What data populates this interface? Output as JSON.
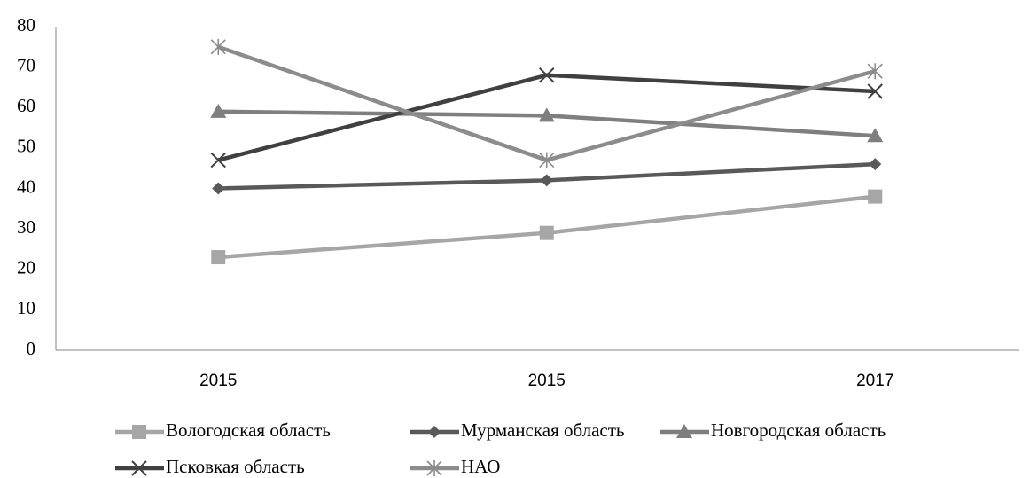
{
  "chart_data": {
    "type": "line",
    "categories": [
      "2015",
      "2015",
      "2017"
    ],
    "series": [
      {
        "name": "Вологодская область",
        "color": "#a6a6a6",
        "marker": "square",
        "values": [
          23,
          29,
          38
        ]
      },
      {
        "name": "Мурманская область",
        "color": "#595959",
        "marker": "diamond",
        "values": [
          40,
          42,
          46
        ]
      },
      {
        "name": "Новгородская область",
        "color": "#7f7f7f",
        "marker": "triangle",
        "values": [
          59,
          58,
          53
        ]
      },
      {
        "name": "Псковкая область",
        "color": "#404040",
        "marker": "x",
        "values": [
          47,
          68,
          64
        ]
      },
      {
        "name": "НАО",
        "color": "#8c8c8c",
        "marker": "star",
        "values": [
          75,
          47,
          69
        ]
      }
    ],
    "ylim": [
      0,
      80
    ],
    "yticks": [
      0,
      10,
      20,
      30,
      40,
      50,
      60,
      70,
      80
    ],
    "grid": false,
    "legend": "bottom"
  }
}
